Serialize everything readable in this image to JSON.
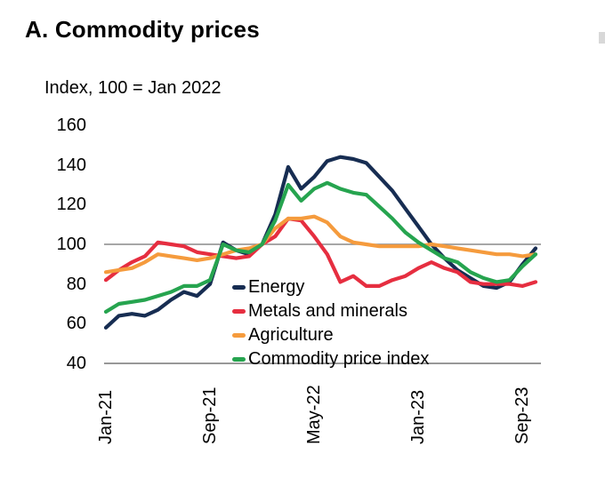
{
  "panel": {
    "title": "A. Commodity prices",
    "subtitle": "Index, 100 = Jan 2022"
  },
  "chart_data": {
    "type": "line",
    "title": "A. Commodity prices",
    "ylabel": "Index, 100 = Jan 2022",
    "xlabel": "",
    "grid": "horizontal-line-at-100-only",
    "legend_position": "inside-bottom-left",
    "ylim": [
      40,
      160
    ],
    "y_ticks": [
      160,
      140,
      120,
      100,
      80,
      60,
      40
    ],
    "reference_line_value": 100,
    "baseline_value": 40,
    "x": [
      "Jan-21",
      "Feb-21",
      "Mar-21",
      "Apr-21",
      "May-21",
      "Jun-21",
      "Jul-21",
      "Aug-21",
      "Sep-21",
      "Oct-21",
      "Nov-21",
      "Dec-21",
      "Jan-22",
      "Feb-22",
      "Mar-22",
      "Apr-22",
      "May-22",
      "Jun-22",
      "Jul-22",
      "Aug-22",
      "Sep-22",
      "Oct-22",
      "Nov-22",
      "Dec-22",
      "Jan-23",
      "Feb-23",
      "Mar-23",
      "Apr-23",
      "May-23",
      "Jun-23",
      "Jul-23",
      "Aug-23",
      "Sep-23",
      "Oct-23"
    ],
    "x_tick_labels": [
      "Jan-21",
      "Sep-21",
      "May-22",
      "Jan-23",
      "Sep-23"
    ],
    "x_tick_indices": [
      0,
      8,
      16,
      24,
      32
    ],
    "series": [
      {
        "name": "Energy",
        "color": "#172d52",
        "values": [
          58,
          64,
          65,
          64,
          67,
          72,
          76,
          74,
          80,
          101,
          97,
          95,
          100,
          115,
          139,
          128,
          134,
          142,
          144,
          143,
          141,
          134,
          127,
          118,
          109,
          100,
          93,
          87,
          83,
          79,
          78,
          81,
          90,
          98
        ]
      },
      {
        "name": "Metals and minerals",
        "color": "#e62e40",
        "values": [
          82,
          87,
          91,
          94,
          101,
          100,
          99,
          96,
          95,
          94,
          93,
          94,
          100,
          104,
          113,
          112,
          104,
          95,
          81,
          84,
          79,
          79,
          82,
          84,
          88,
          91,
          88,
          86,
          81,
          80,
          80,
          80,
          79,
          81
        ]
      },
      {
        "name": "Agriculture",
        "color": "#f59b3d",
        "values": [
          86,
          87,
          88,
          91,
          95,
          94,
          93,
          92,
          93,
          95,
          97,
          98,
          100,
          108,
          113,
          113,
          114,
          111,
          104,
          101,
          100,
          99,
          99,
          99,
          99,
          100,
          99,
          98,
          97,
          96,
          95,
          95,
          94,
          95
        ]
      },
      {
        "name": "Commodity price index",
        "color": "#26a44f",
        "values": [
          66,
          70,
          71,
          72,
          74,
          76,
          79,
          79,
          82,
          100,
          97,
          96,
          100,
          112,
          130,
          122,
          128,
          131,
          128,
          126,
          125,
          119,
          113,
          106,
          101,
          97,
          93,
          91,
          86,
          83,
          81,
          82,
          89,
          95
        ]
      }
    ],
    "colors": {
      "reference_line": "#8a8a8a",
      "baseline": "#8a8a8a",
      "text": "#000000"
    }
  }
}
